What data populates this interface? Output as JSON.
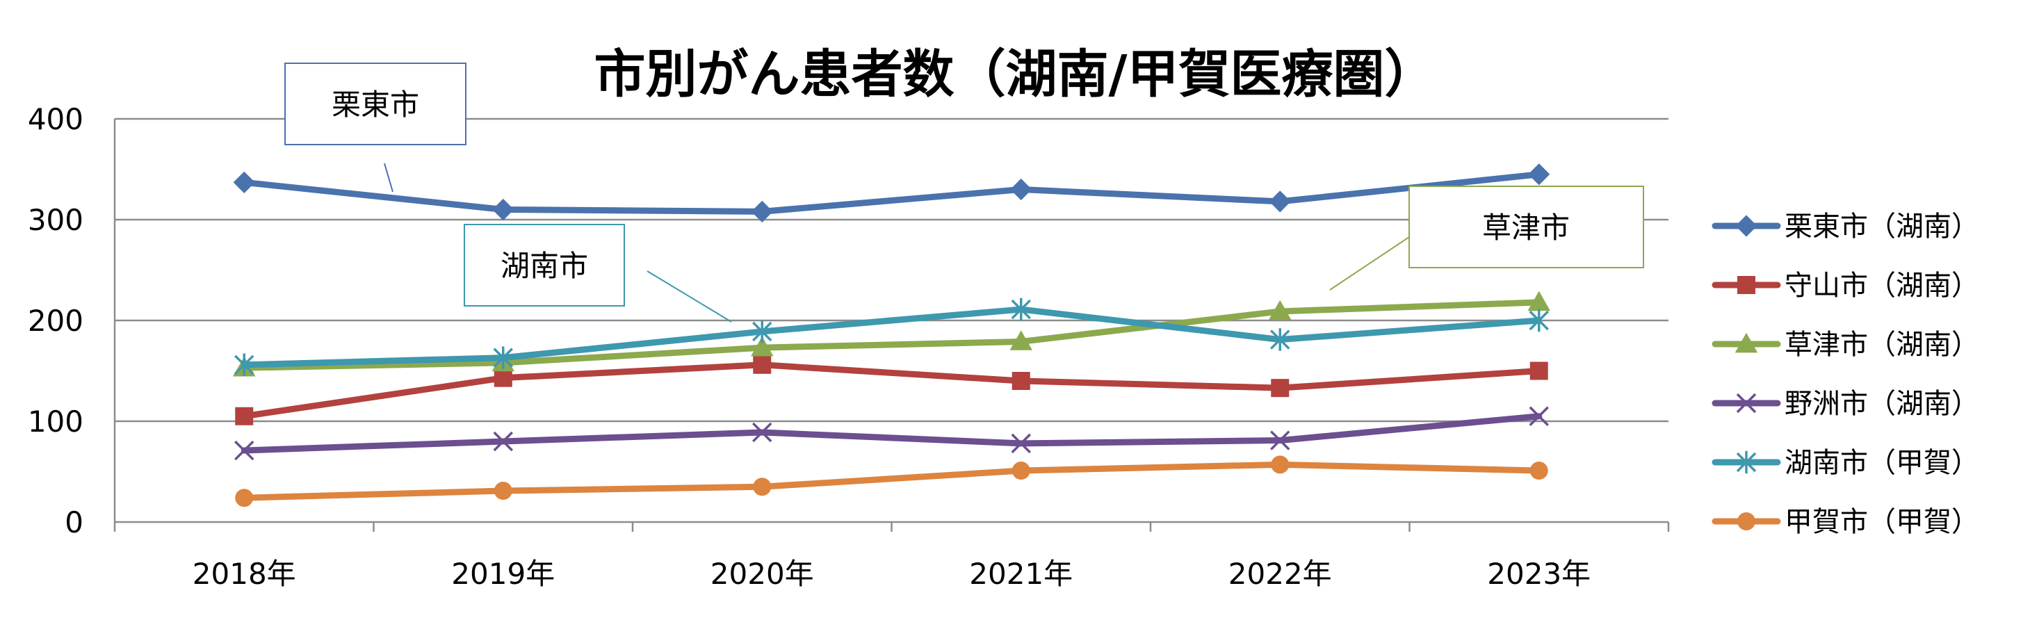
{
  "chart_data": {
    "type": "line",
    "title": "市別がん患者数（湖南/甲賀医療圏）",
    "categories": [
      "2018年",
      "2019年",
      "2020年",
      "2021年",
      "2022年",
      "2023年"
    ],
    "ylim": [
      0,
      400
    ],
    "yticks": [
      0,
      100,
      200,
      300,
      400
    ],
    "grid": "horizontal",
    "legend_position": "right",
    "series": [
      {
        "name": "栗東市（湖南）",
        "color": "#4A72AD",
        "marker": "diamond",
        "values": [
          337,
          310,
          308,
          330,
          318,
          345
        ]
      },
      {
        "name": "守山市（湖南）",
        "color": "#B3413E",
        "marker": "square",
        "values": [
          105,
          143,
          156,
          140,
          133,
          150
        ]
      },
      {
        "name": "草津市（湖南）",
        "color": "#8CA94E",
        "marker": "triangle",
        "values": [
          153,
          158,
          173,
          179,
          209,
          218
        ]
      },
      {
        "name": "野洲市（湖南）",
        "color": "#6B4F8F",
        "marker": "x",
        "values": [
          71,
          80,
          89,
          78,
          81,
          105
        ]
      },
      {
        "name": "湖南市（甲賀）",
        "color": "#3E98AE",
        "marker": "star",
        "values": [
          156,
          163,
          189,
          211,
          181,
          200
        ]
      },
      {
        "name": "甲賀市（甲賀）",
        "color": "#DD843F",
        "marker": "circle",
        "values": [
          24,
          31,
          35,
          51,
          57,
          51
        ]
      }
    ],
    "annotations": [
      {
        "text": "栗東市",
        "color": "#4A72AD"
      },
      {
        "text": "湖南市",
        "color": "#3E98AE"
      },
      {
        "text": "草津市",
        "color": "#8CA94E"
      }
    ]
  }
}
